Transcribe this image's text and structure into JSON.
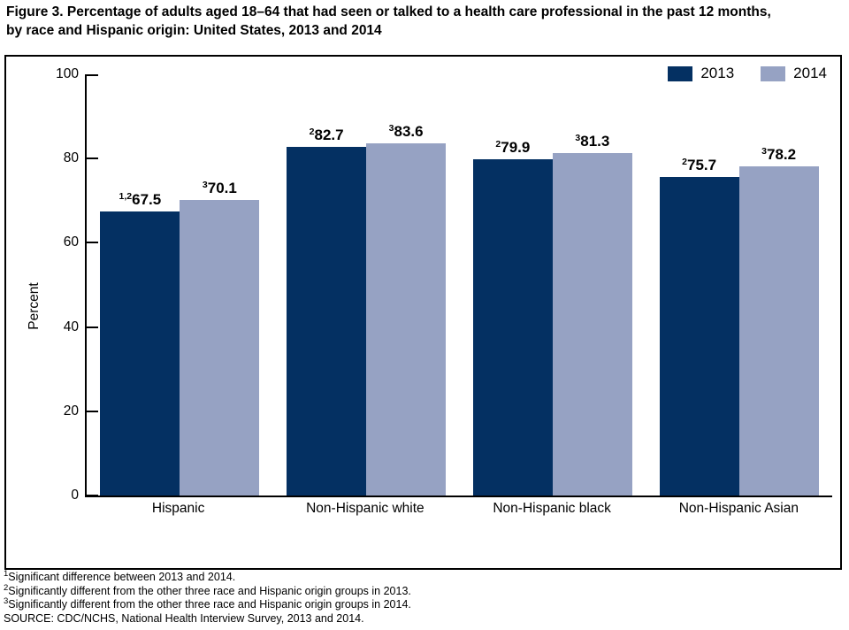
{
  "figure": {
    "title_line1": "Figure 3. Percentage of adults aged 18–64 that had seen or talked to a health care professional in the past 12 months,",
    "title_line2": "by race and Hispanic origin: United States, 2013 and 2014"
  },
  "chart_data": {
    "type": "bar",
    "title": "Percentage of adults aged 18–64 that had seen or talked to a health care professional in the past 12 months, by race and Hispanic origin: United States, 2013 and 2014",
    "categories": [
      "Hispanic",
      "Non-Hispanic white",
      "Non-Hispanic black",
      "Non-Hispanic Asian"
    ],
    "series": [
      {
        "name": "2013",
        "color": "#043062",
        "values": [
          67.5,
          82.7,
          79.9,
          75.7
        ],
        "label_superscripts": [
          "1,2",
          "2",
          "2",
          "2"
        ]
      },
      {
        "name": "2014",
        "color": "#96A2C3",
        "values": [
          70.1,
          83.6,
          81.3,
          78.2
        ],
        "label_superscripts": [
          "3",
          "3",
          "3",
          "3"
        ]
      }
    ],
    "xlabel": "",
    "ylabel": "Percent",
    "ylim": [
      0,
      100
    ],
    "yticks": [
      0,
      20,
      40,
      60,
      80,
      100
    ],
    "grid": false,
    "legend_position": "top-right"
  },
  "footnotes": [
    {
      "sup": "1",
      "text": "Significant difference between 2013 and 2014."
    },
    {
      "sup": "2",
      "text": "Significantly different from the other three race and Hispanic origin groups in 2013."
    },
    {
      "sup": "3",
      "text": "Significantly different from the other three race and Hispanic origin groups in 2014."
    },
    {
      "sup": "",
      "text": "SOURCE: CDC/NCHS, National Health Interview Survey, 2013 and 2014."
    }
  ]
}
